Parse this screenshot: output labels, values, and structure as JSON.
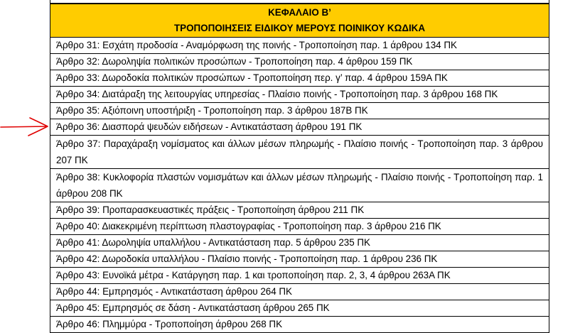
{
  "chapter": {
    "title": "ΚΕΦΑΛΑΙΟ Β’",
    "subtitle": "ΤΡΟΠΟΠΟΙΗΣΕΙΣ ΕΙΔΙΚΟΥ ΜΕΡΟΥΣ ΠΟΙΝΙΚΟΥ ΚΩΔΙΚΑ"
  },
  "articles": [
    "Άρθρο 31: Εσχάτη προδοσία - Αναμόρφωση της ποινής - Τροποποίηση παρ. 1 άρθρου 134 ΠΚ",
    "Άρθρο 32: Δωροληψία πολιτικών προσώπων - Τροποποίηση παρ. 4 άρθρου 159 ΠΚ",
    "Άρθρο 33: Δωροδοκία πολιτικών προσώπων - Τροποποίηση περ. γ’ παρ. 4 άρθρου 159Α ΠΚ",
    "Άρθρο 34: Διατάραξη της λειτουργίας υπηρεσίας - Πλαίσιο ποινής - Τροποποίηση παρ. 3 άρθρου 168 ΠΚ",
    "Άρθρο 35: Αξιόποινη υποστήριξη - Τροποποίηση παρ. 3 άρθρου 187Β ΠΚ",
    "Άρθρο 36: Διασπορά ψευδών ειδήσεων - Αντικατάσταση άρθρου 191 ΠΚ",
    "Άρθρο 37: Παραχάραξη νομίσματος και άλλων μέσων πληρωμής - Πλαίσιο ποινής - Τροποποίηση παρ. 3 άρθρου 207 ΠΚ",
    "Άρθρο 38: Κυκλοφορία πλαστών νομισμάτων και άλλων μέσων πληρωμής - Πλαίσιο ποινής - Τροποποίηση παρ. 1 άρθρου 208 ΠΚ",
    "Άρθρο 39: Προπαρασκευαστικές πράξεις - Τροποποίηση άρθρου 211 ΠΚ",
    "Άρθρο 40: Διακεκριμένη περίπτωση πλαστογραφίας - Τροποποίηση παρ. 3 άρθρου 216 ΠΚ",
    "Άρθρο 41: Δωροληψία υπαλλήλου - Αντικατάσταση παρ. 5 άρθρου 235 ΠΚ",
    "Άρθρο 42: Δωροδοκία υπαλλήλου - Πλαίσιο ποινής - Τροποποίηση παρ. 1 άρθρου 236 ΠΚ",
    "Άρθρο 43: Ευνοϊκά μέτρα - Κατάργηση παρ. 1 και τροποποίηση παρ. 2, 3, 4 άρθρου 263Α ΠΚ",
    "Άρθρο 44: Εμπρησμός - Αντικατάσταση άρθρου 264 ΠΚ",
    "Άρθρο 45: Εμπρησμός σε δάση - Αντικατάσταση άρθρου 265 ΠΚ",
    "Άρθρο 46: Πλημμύρα - Τροποποίηση άρθρου 268 ΠΚ"
  ],
  "colors": {
    "header": "#ffcc00",
    "annotation_arrow": "#e00000"
  }
}
